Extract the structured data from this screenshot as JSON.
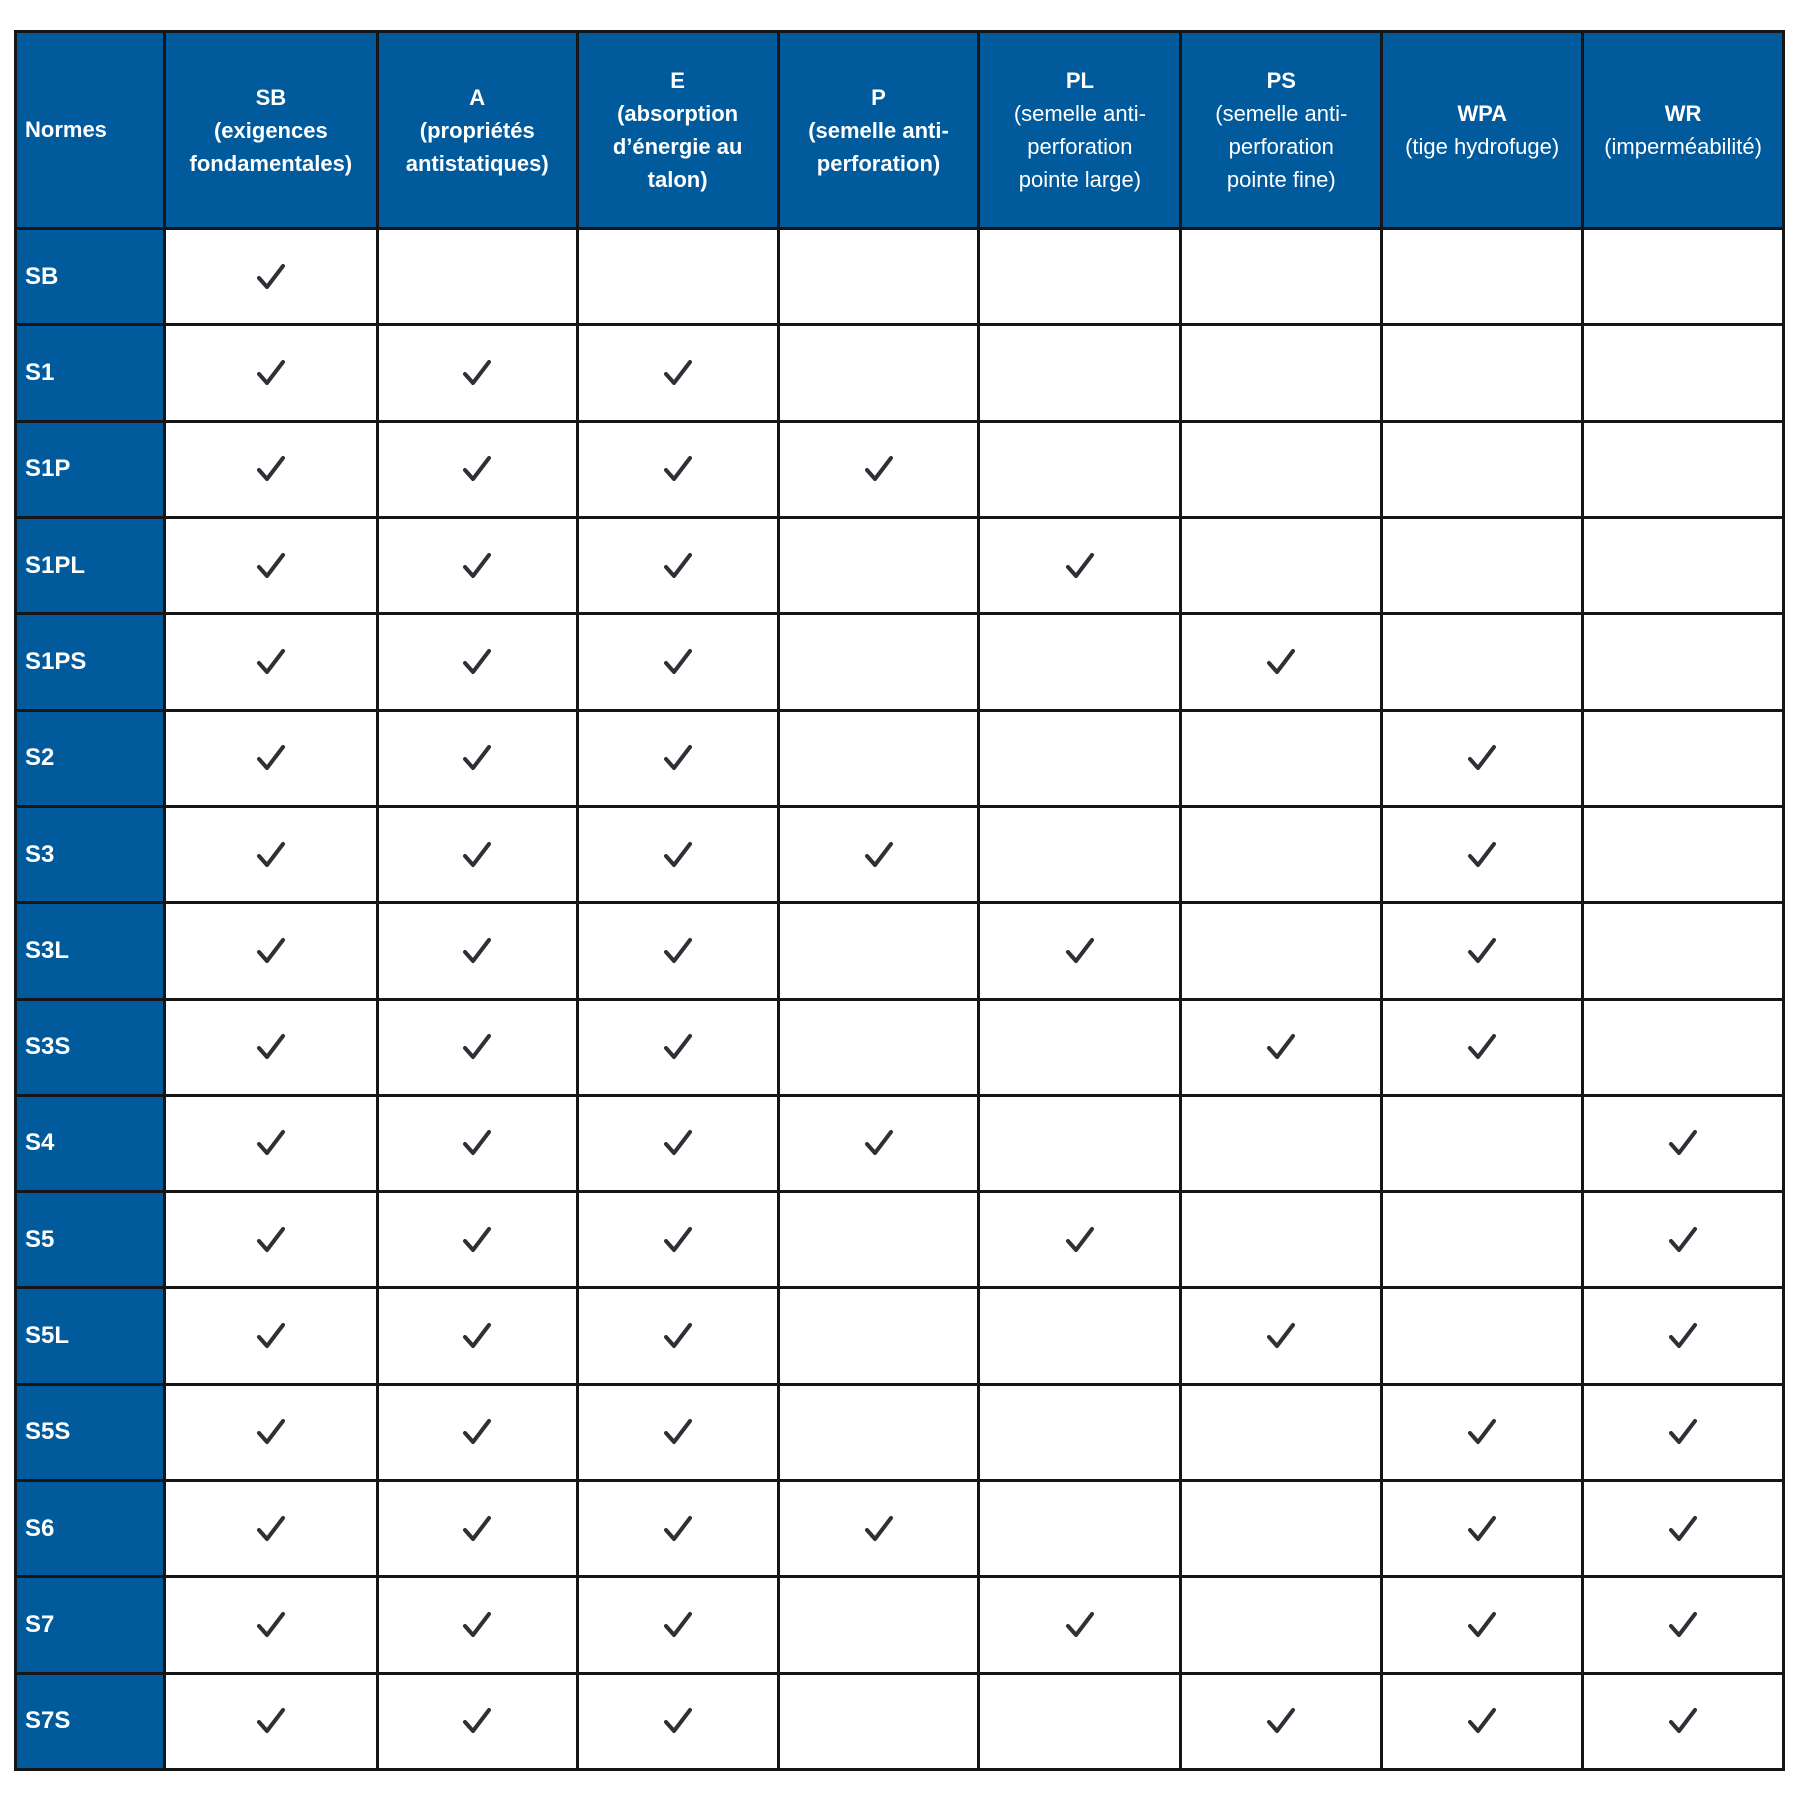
{
  "table": {
    "corner": "Normes",
    "columns": [
      {
        "code": "SB",
        "desc": [
          "(exigences",
          "fondamentales)"
        ],
        "desc_bold": true
      },
      {
        "code": "A",
        "desc": [
          "(propriétés",
          "antistatiques)"
        ],
        "desc_bold": true
      },
      {
        "code": "E",
        "desc": [
          "(absorption",
          "d’énergie au",
          "talon)"
        ],
        "desc_bold": true
      },
      {
        "code": "P",
        "desc": [
          "(semelle anti-",
          "perforation)"
        ],
        "desc_bold": true
      },
      {
        "code": "PL",
        "desc": [
          "(semelle anti-",
          "perforation",
          "pointe large)"
        ],
        "desc_bold": false
      },
      {
        "code": "PS",
        "desc": [
          "(semelle anti-",
          "perforation",
          "pointe fine)"
        ],
        "desc_bold": false
      },
      {
        "code": "WPA",
        "desc": [
          "(tige hydrofuge)"
        ],
        "desc_bold": false
      },
      {
        "code": "WR",
        "desc": [
          "(imperméabilité)"
        ],
        "desc_bold": false
      }
    ],
    "rows": [
      {
        "label": "SB",
        "cells": [
          true,
          false,
          false,
          false,
          false,
          false,
          false,
          false
        ]
      },
      {
        "label": "S1",
        "cells": [
          true,
          true,
          true,
          false,
          false,
          false,
          false,
          false
        ]
      },
      {
        "label": "S1P",
        "cells": [
          true,
          true,
          true,
          true,
          false,
          false,
          false,
          false
        ]
      },
      {
        "label": "S1PL",
        "cells": [
          true,
          true,
          true,
          false,
          true,
          false,
          false,
          false
        ]
      },
      {
        "label": "S1PS",
        "cells": [
          true,
          true,
          true,
          false,
          false,
          true,
          false,
          false
        ]
      },
      {
        "label": "S2",
        "cells": [
          true,
          true,
          true,
          false,
          false,
          false,
          true,
          false
        ]
      },
      {
        "label": "S3",
        "cells": [
          true,
          true,
          true,
          true,
          false,
          false,
          true,
          false
        ]
      },
      {
        "label": "S3L",
        "cells": [
          true,
          true,
          true,
          false,
          true,
          false,
          true,
          false
        ]
      },
      {
        "label": "S3S",
        "cells": [
          true,
          true,
          true,
          false,
          false,
          true,
          true,
          false
        ]
      },
      {
        "label": "S4",
        "cells": [
          true,
          true,
          true,
          true,
          false,
          false,
          false,
          true
        ]
      },
      {
        "label": "S5",
        "cells": [
          true,
          true,
          true,
          false,
          true,
          false,
          false,
          true
        ]
      },
      {
        "label": "S5L",
        "cells": [
          true,
          true,
          true,
          false,
          false,
          true,
          false,
          true
        ]
      },
      {
        "label": "S5S",
        "cells": [
          true,
          true,
          true,
          false,
          false,
          false,
          true,
          true
        ]
      },
      {
        "label": "S6",
        "cells": [
          true,
          true,
          true,
          true,
          false,
          false,
          true,
          true
        ]
      },
      {
        "label": "S7",
        "cells": [
          true,
          true,
          true,
          false,
          true,
          false,
          true,
          true
        ]
      },
      {
        "label": "S7S",
        "cells": [
          true,
          true,
          true,
          false,
          false,
          true,
          true,
          true
        ]
      }
    ]
  }
}
